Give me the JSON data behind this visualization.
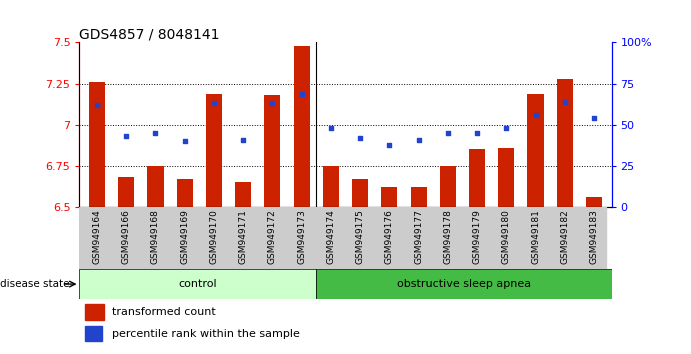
{
  "title": "GDS4857 / 8048141",
  "samples": [
    "GSM949164",
    "GSM949166",
    "GSM949168",
    "GSM949169",
    "GSM949170",
    "GSM949171",
    "GSM949172",
    "GSM949173",
    "GSM949174",
    "GSM949175",
    "GSM949176",
    "GSM949177",
    "GSM949178",
    "GSM949179",
    "GSM949180",
    "GSM949181",
    "GSM949182",
    "GSM949183"
  ],
  "bar_values": [
    7.26,
    6.68,
    6.75,
    6.67,
    7.19,
    6.65,
    7.18,
    7.48,
    6.75,
    6.67,
    6.62,
    6.62,
    6.75,
    6.85,
    6.86,
    7.19,
    7.28,
    6.56
  ],
  "dot_values": [
    7.12,
    6.93,
    6.95,
    6.9,
    7.13,
    6.91,
    7.13,
    7.19,
    6.98,
    6.92,
    6.88,
    6.91,
    6.95,
    6.95,
    6.98,
    7.06,
    7.14,
    7.04
  ],
  "ylim": [
    6.5,
    7.5
  ],
  "y2lim": [
    0,
    100
  ],
  "yticks": [
    6.5,
    6.75,
    7.0,
    7.25,
    7.5
  ],
  "y2ticks": [
    0,
    25,
    50,
    75,
    100
  ],
  "ytick_labels": [
    "6.5",
    "6.75",
    "7",
    "7.25",
    "7.5"
  ],
  "y2tick_labels": [
    "0",
    "25",
    "50",
    "75",
    "100%"
  ],
  "hlines": [
    6.75,
    7.0,
    7.25
  ],
  "bar_color": "#cc2200",
  "dot_color": "#2244cc",
  "bar_bottom": 6.5,
  "n_control": 8,
  "control_label": "control",
  "osa_label": "obstructive sleep apnea",
  "disease_label": "disease state",
  "legend_bar_label": "transformed count",
  "legend_dot_label": "percentile rank within the sample",
  "control_color": "#ccffcc",
  "osa_color": "#44bb44",
  "title_fontsize": 10,
  "tick_fontsize": 8,
  "xtick_fontsize": 6.5,
  "legend_fontsize": 8
}
